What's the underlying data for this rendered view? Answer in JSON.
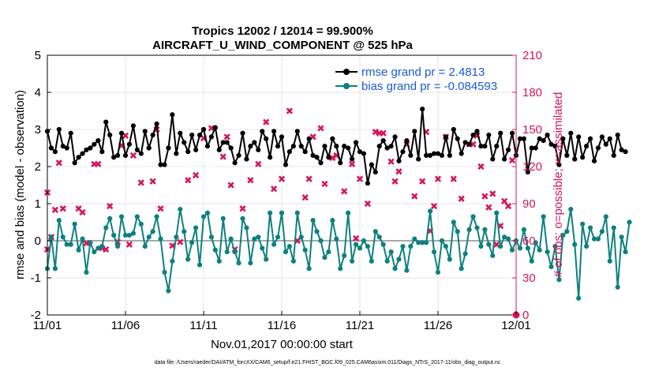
{
  "chart_data": {
    "type": "line",
    "title": "Tropics 12002 / 12014 = 99.900%",
    "subtitle": "AIRCRAFT_U_WIND_COMPONENT @ 525 hPa",
    "xlabel": "Nov.01,2017 00:00:00 start",
    "ylabel": "rmse and bias (model - observation)",
    "y2label": "# of obs: o=possible; ×=assimilated",
    "x_tick_labels": [
      "11/01",
      "11/06",
      "11/11",
      "11/16",
      "11/21",
      "11/26",
      "12/01"
    ],
    "xlim": [
      0,
      30
    ],
    "ylim": [
      -2,
      5
    ],
    "y_ticks": [
      -2,
      -1,
      0,
      1,
      2,
      3,
      4,
      5
    ],
    "y2lim": [
      0,
      210
    ],
    "y2_ticks": [
      0,
      30,
      60,
      90,
      120,
      150,
      180,
      210
    ],
    "x_step_days": 0.25,
    "footer": "data file: /Users/raeder/DAI/ATM_forcXX/CAM6_setup/f.e21.FHIST_BGC.f09_025.CAM6assim.011/Diags_NTrS_2017-11/obs_diag_output.nc",
    "colors": {
      "rmse": "#000000",
      "bias": "#0d8080",
      "counts": "#d6145a",
      "legend_text": "#1a5ad6",
      "zero_line": "#aaaaaa"
    },
    "series": [
      {
        "name": "rmse",
        "legend": "rmse grand pr = 2.4813",
        "axis": "left",
        "values": [
          2.95,
          2.5,
          2.4,
          3.0,
          2.55,
          2.5,
          2.9,
          2.1,
          2.25,
          2.35,
          2.45,
          2.5,
          2.6,
          2.7,
          2.4,
          3.2,
          2.85,
          2.25,
          2.3,
          2.9,
          2.3,
          2.6,
          3.1,
          2.45,
          2.35,
          2.95,
          2.5,
          2.85,
          3.15,
          2.05,
          2.05,
          2.5,
          3.4,
          2.35,
          2.9,
          2.65,
          2.4,
          2.85,
          2.45,
          2.85,
          3.0,
          2.55,
          2.8,
          3.05,
          2.45,
          2.65,
          2.65,
          2.5,
          2.1,
          2.3,
          2.9,
          2.2,
          2.55,
          2.65,
          2.45,
          2.95,
          2.75,
          2.25,
          2.95,
          2.55,
          2.8,
          2.05,
          2.4,
          2.55,
          2.95,
          2.55,
          2.4,
          2.75,
          2.3,
          2.25,
          2.1,
          2.55,
          2.25,
          2.75,
          2.55,
          2.1,
          2.55,
          2.5,
          2.2,
          2.65,
          2.4,
          2.35,
          1.55,
          2.05,
          1.85,
          2.55,
          2.7,
          2.5,
          2.55,
          2.8,
          2.15,
          2.4,
          2.7,
          2.3,
          2.95,
          2.2,
          3.55,
          2.3,
          2.3,
          2.35,
          2.35,
          2.3,
          2.8,
          2.3,
          3.0,
          2.75,
          2.35,
          2.65,
          2.6,
          2.85,
          2.95,
          2.55,
          2.55,
          2.85,
          2.2,
          2.55,
          2.9,
          2.2,
          2.45,
          2.9,
          2.3,
          2.75,
          2.75,
          1.85,
          2.5,
          2.5,
          2.75,
          2.7,
          2.85,
          2.6,
          2.55,
          2.05,
          2.75,
          2.3,
          2.9,
          2.2,
          2.8,
          2.25,
          2.55,
          2.75,
          2.15,
          2.5,
          2.8,
          2.6,
          2.75,
          2.3,
          2.85,
          2.45,
          2.4
        ]
      },
      {
        "name": "bias",
        "legend": "bias grand pr = -0.084593",
        "axis": "left",
        "values": [
          -0.75,
          0.1,
          -0.75,
          0.55,
          0.1,
          -0.1,
          -0.1,
          0.45,
          -0.25,
          0.05,
          -0.85,
          -0.05,
          -0.3,
          -0.2,
          -0.15,
          0.35,
          0.6,
          0.15,
          -0.15,
          0.65,
          0.15,
          0.15,
          0.2,
          0.65,
          0.45,
          -0.15,
          0.1,
          0.25,
          0.65,
          0.05,
          -0.85,
          -1.35,
          -0.55,
          0.1,
          0.85,
          0.25,
          -0.5,
          -0.05,
          0.35,
          -0.65,
          0.65,
          0.75,
          0.1,
          -0.25,
          -0.55,
          0.6,
          -0.3,
          0.05,
          -0.3,
          -0.6,
          0.6,
          0.35,
          -0.6,
          0.05,
          0.1,
          -0.2,
          -0.5,
          0.75,
          -0.1,
          0.1,
          0.75,
          -0.3,
          -0.15,
          -0.55,
          0.75,
          0.1,
          -0.25,
          -0.75,
          0.55,
          0.25,
          0.0,
          -0.45,
          -0.3,
          0.55,
          0.05,
          -0.75,
          -0.4,
          0.75,
          -0.55,
          -0.1,
          -0.2,
          0.0,
          -0.15,
          -0.55,
          0.25,
          0.1,
          -0.1,
          -0.55,
          -0.3,
          -0.75,
          -0.5,
          -0.15,
          -0.8,
          -0.15,
          0.05,
          -0.05,
          -0.05,
          -0.05,
          0.8,
          -0.3,
          -0.85,
          0.0,
          -0.15,
          -0.5,
          0.5,
          0.25,
          -0.75,
          -0.35,
          0.3,
          0.65,
          0.35,
          -0.15,
          0.3,
          -0.1,
          -0.4,
          0.75,
          -0.15,
          0.1,
          0.05,
          -0.25,
          0.0,
          -0.2,
          0.3,
          -0.2,
          -0.55,
          -0.05,
          -0.25,
          0.65,
          -0.3,
          -0.7,
          -0.15,
          -1.05,
          0.15,
          0.25,
          0.85,
          -0.1,
          -1.55,
          0.45,
          -0.15,
          0.35,
          0.05,
          0.05,
          0.25,
          0.65,
          -0.55,
          0.35,
          -1.25,
          0.1,
          -0.3,
          0.5
        ]
      }
    ],
    "counts": {
      "axis": "right",
      "marker": "x",
      "points": [
        [
          0,
          99
        ],
        [
          0,
          53
        ],
        [
          0.25,
          63
        ],
        [
          0.5,
          85
        ],
        [
          0.75,
          123
        ],
        [
          1.0,
          86
        ],
        [
          2.0,
          86
        ],
        [
          2.25,
          83
        ],
        [
          2.5,
          58
        ],
        [
          3.0,
          122
        ],
        [
          3.25,
          122
        ],
        [
          3.5,
          54
        ],
        [
          3.75,
          53
        ],
        [
          4.0,
          88
        ],
        [
          4.5,
          59
        ],
        [
          4.75,
          137
        ],
        [
          5.0,
          145
        ],
        [
          5.25,
          57
        ],
        [
          5.5,
          129
        ],
        [
          6.0,
          107
        ],
        [
          6.75,
          108
        ],
        [
          7.0,
          150
        ],
        [
          7.25,
          86
        ],
        [
          8.0,
          56
        ],
        [
          8.5,
          59
        ],
        [
          9.0,
          109
        ],
        [
          9.5,
          113
        ],
        [
          10.0,
          143
        ],
        [
          10.5,
          151
        ],
        [
          11.25,
          128
        ],
        [
          11.5,
          144
        ],
        [
          11.75,
          105
        ],
        [
          12.0,
          53
        ],
        [
          12.5,
          86
        ],
        [
          13.0,
          109
        ],
        [
          13.5,
          122
        ],
        [
          14.0,
          156
        ],
        [
          14.5,
          102
        ],
        [
          15.0,
          110
        ],
        [
          15.5,
          165
        ],
        [
          16.0,
          60
        ],
        [
          16.5,
          95
        ],
        [
          16.75,
          110
        ],
        [
          17.0,
          144
        ],
        [
          17.5,
          151
        ],
        [
          17.75,
          106
        ],
        [
          18.25,
          127
        ],
        [
          18.5,
          129
        ],
        [
          19.0,
          100
        ],
        [
          19.5,
          122
        ],
        [
          19.75,
          62
        ],
        [
          20.0,
          110
        ],
        [
          20.5,
          90
        ],
        [
          21.0,
          148
        ],
        [
          21.25,
          147
        ],
        [
          21.5,
          147
        ],
        [
          22.0,
          124
        ],
        [
          22.25,
          108
        ],
        [
          22.5,
          116
        ],
        [
          23.0,
          138
        ],
        [
          23.5,
          96
        ],
        [
          24.0,
          108
        ],
        [
          24.25,
          148
        ],
        [
          24.5,
          68
        ],
        [
          24.75,
          88
        ],
        [
          25.0,
          110
        ],
        [
          25.5,
          144
        ],
        [
          26.0,
          110
        ],
        [
          26.5,
          94
        ],
        [
          27.0,
          138
        ],
        [
          27.25,
          138
        ],
        [
          27.5,
          145
        ],
        [
          27.75,
          120
        ],
        [
          28.0,
          96
        ],
        [
          28.25,
          87
        ],
        [
          28.5,
          98
        ],
        [
          28.75,
          57
        ],
        [
          29.0,
          72
        ],
        [
          29.25,
          92
        ],
        [
          29.5,
          88
        ],
        [
          29.75,
          125
        ]
      ]
    }
  }
}
